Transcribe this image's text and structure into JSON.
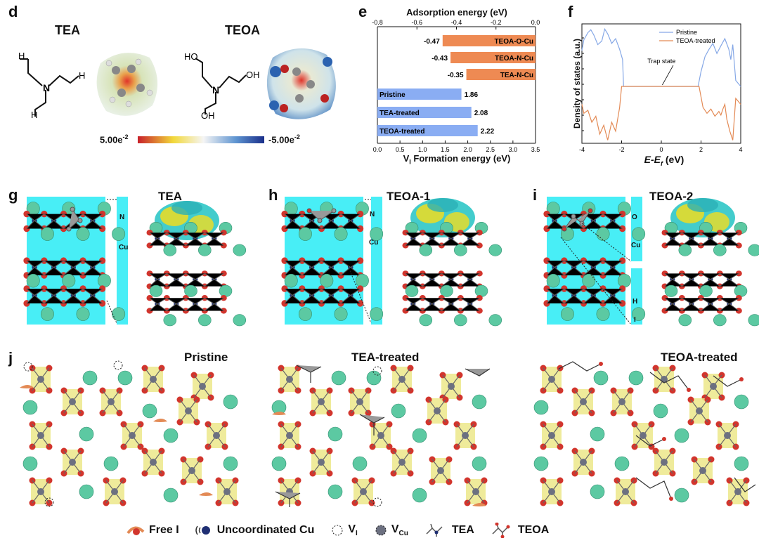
{
  "panels": {
    "d": "d",
    "e": "e",
    "f": "f",
    "g": "g",
    "h": "h",
    "i": "i",
    "j": "j"
  },
  "d": {
    "mol1": "TEA",
    "mol2": "TEOA",
    "scale_min": "5.00e",
    "scale_max": "-5.00e",
    "scale_exp": "-2"
  },
  "e": {
    "top_axis_title": "Adsorption energy (eV)",
    "bottom_axis_title": "V",
    "bottom_axis_sub": "I",
    "bottom_axis_rest": " Formation energy (eV)"
  },
  "f": {
    "ylabel": "Density of states (a.u.)",
    "xlabel_main": "E-E",
    "xlabel_sub": "f",
    "xlabel_unit": " (eV)",
    "annotation": "Trap state"
  },
  "g": {
    "title": "TEA",
    "top_atom": "N",
    "bottom_atom": "Cu"
  },
  "h": {
    "title": "TEOA-1",
    "top_atom": "N",
    "bottom_atom": "Cu"
  },
  "i": {
    "title": "TEOA-2",
    "top_atom": "O",
    "bottom_atom": "Cu",
    "top_atom2": "H",
    "bottom_atom2": "I"
  },
  "j": {
    "titles": [
      "Pristine",
      "TEA-treated",
      "TEOA-treated"
    ]
  },
  "legend": {
    "free_i": "Free I",
    "uncoord_cu": "Uncoordinated Cu",
    "v_i": "V",
    "v_i_sub": "I",
    "v_cu": "V",
    "v_cu_sub": "Cu",
    "tea": "TEA",
    "teoa": "TEOA"
  },
  "colors": {
    "orange": "#EE8A53",
    "blue": "#8AADF3",
    "cyan": "#48EEF6",
    "pristine_line": "#86A8E6",
    "teoa_line": "#E38A55",
    "cs": "#5CC9A2",
    "o_atom": "#D2352D",
    "cu_atom": "#1F2F73",
    "iso_yellow": "#E6DC2A"
  },
  "chart_data": [
    {
      "type": "bar",
      "title": "Adsorption energy (eV)",
      "categories": [
        "TEOA-O-Cu",
        "TEOA-N-Cu",
        "TEA-N-Cu"
      ],
      "values": [
        -0.47,
        -0.43,
        -0.35
      ],
      "value_labels": [
        "-0.47",
        "-0.43",
        "-0.35"
      ],
      "xlim": [
        -0.8,
        0.0
      ],
      "xticks": [
        "-0.8",
        "-0.6",
        "-0.4",
        "-0.2",
        "0.0"
      ],
      "xlabel": "Adsorption energy (eV)"
    },
    {
      "type": "bar",
      "title": "V_I Formation energy (eV)",
      "categories": [
        "Pristine",
        "TEA-treated",
        "TEOA-treated"
      ],
      "values": [
        1.86,
        2.08,
        2.22
      ],
      "value_labels": [
        "1.86",
        "2.08",
        "2.22"
      ],
      "xlim": [
        0.0,
        3.5
      ],
      "xticks": [
        "0.0",
        "0.5",
        "1.0",
        "1.5",
        "2.0",
        "2.5",
        "3.0",
        "3.5"
      ],
      "xlabel": "V_I Formation energy (eV)"
    },
    {
      "type": "line",
      "title": "Density of states",
      "xlabel": "E-E_f (eV)",
      "ylabel": "Density of states (a.u.)",
      "xlim": [
        -4,
        4
      ],
      "xticks": [
        "-4",
        "-2",
        "0",
        "2",
        "4"
      ],
      "legend": [
        "Pristine",
        "TEOA-treated"
      ],
      "series": [
        {
          "name": "Pristine",
          "x": [
            -4,
            -3.9,
            -3.7,
            -3.55,
            -3.4,
            -3.2,
            -3.0,
            -2.85,
            -2.7,
            -2.5,
            -2.3,
            -2.1,
            -1.95,
            -1.9,
            -1,
            0,
            1,
            1.85,
            2.0,
            2.2,
            2.4,
            2.6,
            2.8,
            3.0,
            3.2,
            3.4,
            3.5,
            3.6,
            3.75,
            4
          ],
          "y": [
            0.6,
            0.78,
            0.9,
            0.95,
            0.86,
            0.7,
            0.76,
            0.96,
            0.88,
            0.72,
            0.8,
            0.62,
            0.45,
            0.0,
            0.0,
            0.0,
            0.0,
            0.0,
            0.25,
            0.5,
            0.62,
            0.72,
            0.55,
            0.68,
            0.8,
            0.62,
            0.45,
            0.7,
            0.1,
            0.0
          ]
        },
        {
          "name": "TEOA-treated",
          "x": [
            -4,
            -3.9,
            -3.7,
            -3.5,
            -3.3,
            -3.1,
            -2.9,
            -2.7,
            -2.5,
            -2.3,
            -2.1,
            -2.0,
            -1,
            0,
            1,
            1.9,
            2.1,
            2.3,
            2.5,
            2.7,
            2.9,
            3.0,
            3.1,
            3.2,
            3.3,
            3.45,
            3.6,
            3.75,
            4
          ],
          "y": [
            -0.3,
            -0.45,
            -0.4,
            -0.6,
            -0.5,
            -0.8,
            -0.65,
            -0.9,
            -0.6,
            -0.75,
            -0.35,
            0.0,
            0.0,
            0.0,
            0.0,
            0.0,
            -0.35,
            -0.45,
            -0.38,
            -0.5,
            -0.42,
            -0.48,
            -0.38,
            -0.3,
            -0.55,
            -0.75,
            -0.9,
            -0.2,
            -0.3
          ]
        }
      ]
    }
  ]
}
